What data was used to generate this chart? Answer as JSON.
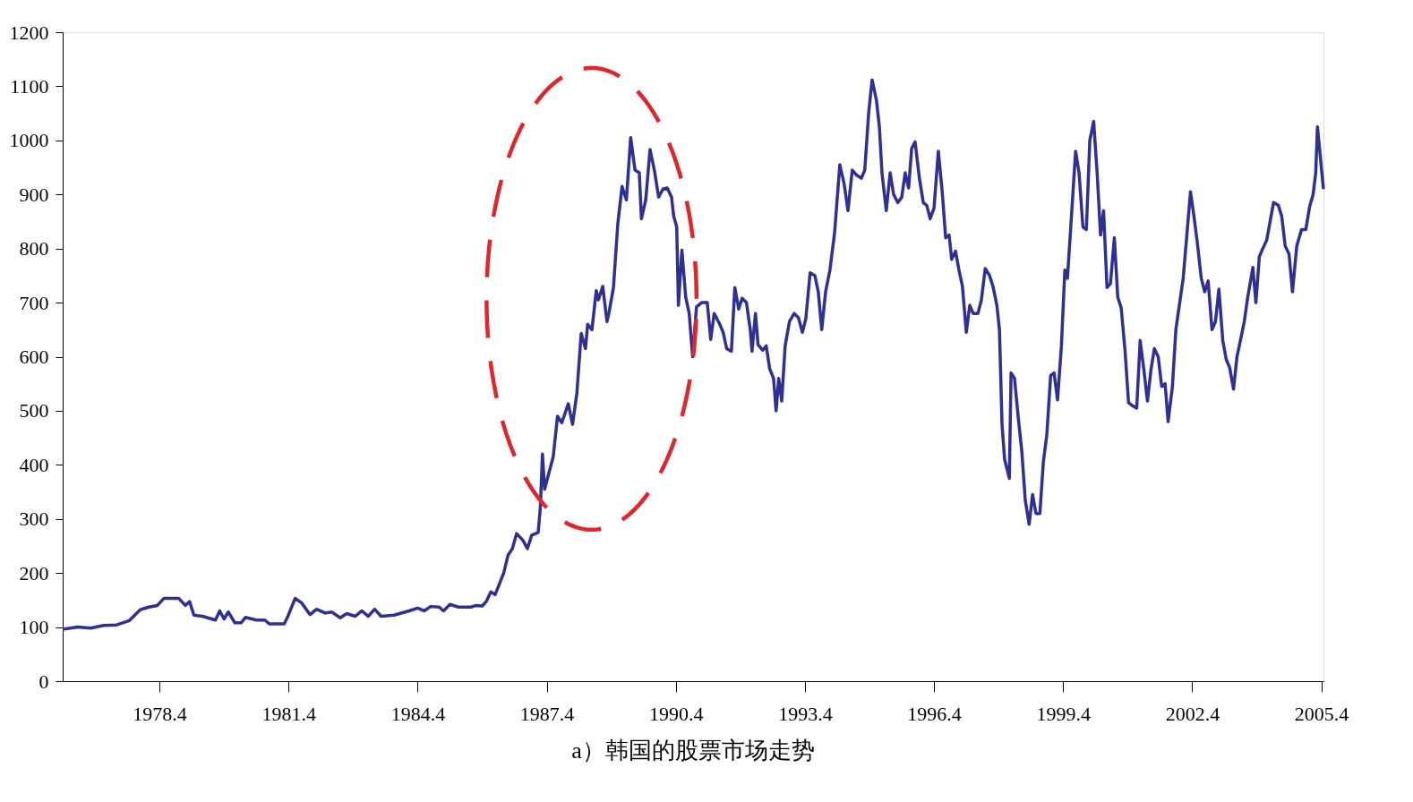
{
  "chart_data": {
    "type": "line",
    "title": "a）韩国的股票市场走势",
    "x": [
      1976.15,
      1976.5,
      1976.8,
      1977.1,
      1977.4,
      1977.7,
      1977.95,
      1978.15,
      1978.35,
      1978.5,
      1978.85,
      1979.0,
      1979.1,
      1979.2,
      1979.4,
      1979.7,
      1979.8,
      1979.9,
      1980.0,
      1980.15,
      1980.3,
      1980.4,
      1980.65,
      1980.85,
      1980.95,
      1981.3,
      1981.4,
      1981.55,
      1981.7,
      1981.9,
      1982.05,
      1982.25,
      1982.4,
      1982.6,
      1982.75,
      1982.95,
      1983.1,
      1983.25,
      1983.4,
      1983.55,
      1983.85,
      1984.2,
      1984.4,
      1984.55,
      1984.7,
      1984.9,
      1985.0,
      1985.15,
      1985.35,
      1985.65,
      1985.75,
      1985.9,
      1986.0,
      1986.1,
      1986.2,
      1986.4,
      1986.5,
      1986.6,
      1986.7,
      1986.85,
      1986.95,
      1987.05,
      1987.2,
      1987.25,
      1987.3,
      1987.35,
      1987.55,
      1987.65,
      1987.75,
      1987.9,
      1988.0,
      1988.1,
      1988.2,
      1988.3,
      1988.35,
      1988.45,
      1988.55,
      1988.6,
      1988.7,
      1988.8,
      1988.85,
      1988.95,
      1989.05,
      1989.15,
      1989.25,
      1989.35,
      1989.45,
      1989.55,
      1989.6,
      1989.7,
      1989.8,
      1989.9,
      1990.0,
      1990.1,
      1990.2,
      1990.3,
      1990.35,
      1990.42,
      1990.46,
      1990.54,
      1990.63,
      1990.71,
      1990.79,
      1990.88,
      1991.0,
      1991.13,
      1991.21,
      1991.29,
      1991.42,
      1991.5,
      1991.58,
      1991.69,
      1991.77,
      1991.86,
      1991.94,
      1992.04,
      1992.13,
      1992.17,
      1992.25,
      1992.31,
      1992.42,
      1992.5,
      1992.58,
      1992.67,
      1992.73,
      1992.79,
      1992.86,
      1992.94,
      1993.04,
      1993.15,
      1993.25,
      1993.34,
      1993.42,
      1993.52,
      1993.63,
      1993.71,
      1993.79,
      1993.88,
      1993.98,
      1994.09,
      1994.21,
      1994.31,
      1994.4,
      1994.5,
      1994.61,
      1994.71,
      1994.79,
      1994.88,
      1994.96,
      1995.06,
      1995.13,
      1995.19,
      1995.29,
      1995.38,
      1995.46,
      1995.56,
      1995.65,
      1995.73,
      1995.81,
      1995.88,
      1995.96,
      1996.06,
      1996.15,
      1996.23,
      1996.31,
      1996.4,
      1996.5,
      1996.59,
      1996.67,
      1996.75,
      1996.81,
      1996.9,
      1996.98,
      1997.06,
      1997.15,
      1997.23,
      1997.31,
      1997.42,
      1997.5,
      1997.59,
      1997.69,
      1997.77,
      1997.86,
      1997.92,
      1997.98,
      1998.04,
      1998.15,
      1998.19,
      1998.27,
      1998.36,
      1998.44,
      1998.52,
      1998.61,
      1998.69,
      1998.77,
      1998.86,
      1998.94,
      1999.02,
      1999.11,
      1999.19,
      1999.27,
      1999.36,
      1999.44,
      1999.5,
      1999.61,
      1999.69,
      1999.77,
      1999.86,
      1999.94,
      2000.02,
      2000.11,
      2000.19,
      2000.27,
      2000.34,
      2000.42,
      2000.5,
      2000.59,
      2000.67,
      2000.75,
      2000.84,
      2000.92,
      2001.0,
      2001.11,
      2001.19,
      2001.27,
      2001.36,
      2001.44,
      2001.52,
      2001.61,
      2001.69,
      2001.77,
      2001.84,
      2001.94,
      2002.02,
      2002.11,
      2002.19,
      2002.27,
      2002.36,
      2002.44,
      2002.52,
      2002.61,
      2002.69,
      2002.77,
      2002.86,
      2002.94,
      2003.02,
      2003.11,
      2003.19,
      2003.27,
      2003.36,
      2003.44,
      2003.52,
      2003.61,
      2003.69,
      2003.81,
      2003.88,
      2003.96,
      2004.04,
      2004.13,
      2004.21,
      2004.29,
      2004.4,
      2004.48,
      2004.56,
      2004.65,
      2004.73,
      2004.83,
      2004.94,
      2005.04,
      2005.13,
      2005.21,
      2005.27,
      2005.31,
      2005.45
    ],
    "series": [
      {
        "color": "#2e3192",
        "values": [
          96,
          100,
          98,
          103,
          104,
          112,
          132,
          137,
          140,
          153,
          153,
          140,
          147,
          122,
          120,
          113,
          130,
          115,
          128,
          108,
          108,
          118,
          113,
          113,
          106,
          106,
          123,
          153,
          145,
          123,
          133,
          126,
          128,
          117,
          125,
          120,
          130,
          120,
          133,
          120,
          122,
          130,
          135,
          130,
          138,
          137,
          130,
          142,
          137,
          137,
          140,
          139,
          148,
          165,
          160,
          200,
          233,
          245,
          273,
          260,
          245,
          270,
          275,
          320,
          420,
          355,
          415,
          490,
          478,
          513,
          475,
          533,
          643,
          615,
          660,
          650,
          722,
          705,
          730,
          665,
          683,
          728,
          845,
          915,
          890,
          1005,
          945,
          940,
          855,
          890,
          983,
          945,
          895,
          910,
          912,
          895,
          860,
          840,
          695,
          797,
          710,
          680,
          600,
          692,
          700,
          700,
          632,
          680,
          660,
          645,
          615,
          610,
          728,
          688,
          708,
          700,
          650,
          610,
          680,
          622,
          612,
          620,
          578,
          560,
          500,
          560,
          518,
          620,
          665,
          680,
          672,
          645,
          670,
          755,
          750,
          720,
          650,
          720,
          760,
          830,
          955,
          920,
          870,
          945,
          935,
          930,
          945,
          1050,
          1112,
          1075,
          1025,
          940,
          870,
          940,
          900,
          885,
          895,
          940,
          912,
          985,
          997,
          930,
          885,
          880,
          855,
          875,
          980,
          905,
          820,
          825,
          780,
          795,
          760,
          730,
          645,
          695,
          680,
          680,
          705,
          763,
          750,
          730,
          695,
          650,
          475,
          410,
          375,
          570,
          560,
          485,
          425,
          335,
          290,
          345,
          310,
          310,
          405,
          455,
          565,
          570,
          520,
          620,
          760,
          745,
          880,
          980,
          940,
          840,
          835,
          1000,
          1035,
          940,
          825,
          870,
          728,
          735,
          820,
          710,
          690,
          610,
          515,
          510,
          505,
          630,
          580,
          518,
          575,
          615,
          600,
          545,
          550,
          480,
          545,
          650,
          700,
          745,
          820,
          905,
          860,
          810,
          745,
          720,
          740,
          650,
          665,
          725,
          630,
          595,
          580,
          540,
          600,
          630,
          665,
          710,
          765,
          700,
          785,
          800,
          815,
          850,
          885,
          880,
          860,
          805,
          790,
          720,
          805,
          835,
          835,
          878,
          900,
          940,
          1025,
          910
        ]
      }
    ],
    "xlim": [
      1976.15,
      2005.45
    ],
    "xticks": [
      1978.4,
      1981.4,
      1984.4,
      1987.4,
      1990.4,
      1993.4,
      1996.4,
      1999.4,
      2002.4,
      2005.4
    ],
    "ylim": [
      0,
      1200
    ],
    "yticks": [
      0,
      100,
      200,
      300,
      400,
      500,
      600,
      700,
      800,
      900,
      1000,
      1100,
      1200
    ],
    "grid": false,
    "legend": false,
    "marker": "none",
    "line_style": "solid"
  }
}
